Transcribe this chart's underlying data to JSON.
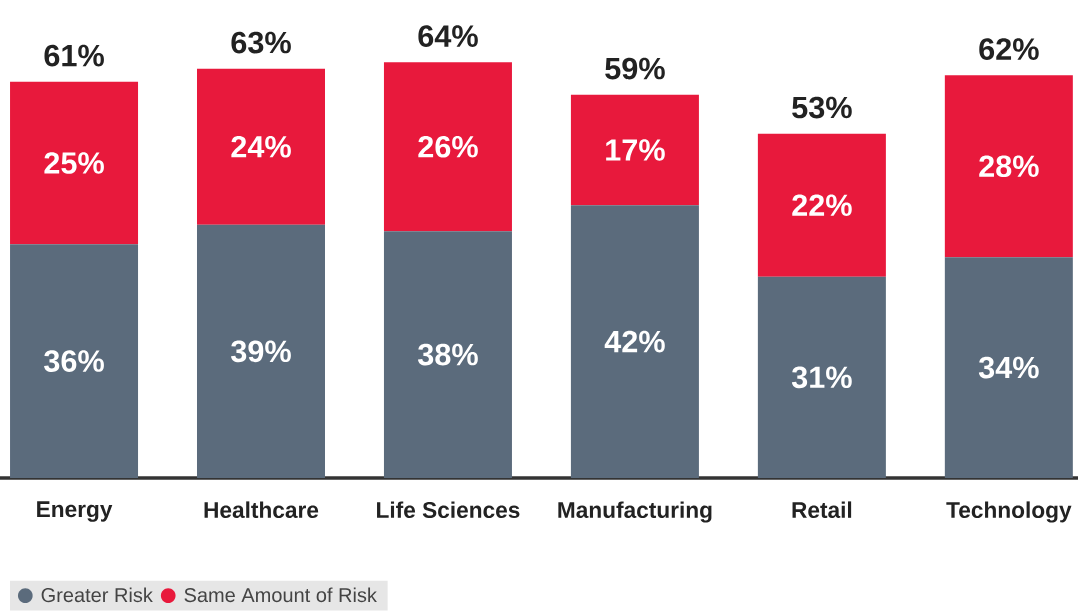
{
  "chart_data": {
    "type": "bar",
    "stacked": true,
    "categories": [
      "Energy",
      "Healthcare",
      "Life Sciences",
      "Manufacturing",
      "Retail",
      "Technology"
    ],
    "series": [
      {
        "name": "Greater Risk",
        "color": "#5b6b7c",
        "values": [
          36,
          39,
          38,
          42,
          31,
          34
        ],
        "value_labels": [
          "36%",
          "39%",
          "38%",
          "42%",
          "31%",
          "34%"
        ]
      },
      {
        "name": "Same Amount of Risk",
        "color": "#e8193c",
        "values": [
          25,
          24,
          26,
          17,
          22,
          28
        ],
        "value_labels": [
          "25%",
          "24%",
          "26%",
          "17%",
          "22%",
          "28%"
        ]
      }
    ],
    "totals": [
      "61%",
      "63%",
      "64%",
      "59%",
      "53%",
      "62%"
    ],
    "legend": "bottom left"
  }
}
